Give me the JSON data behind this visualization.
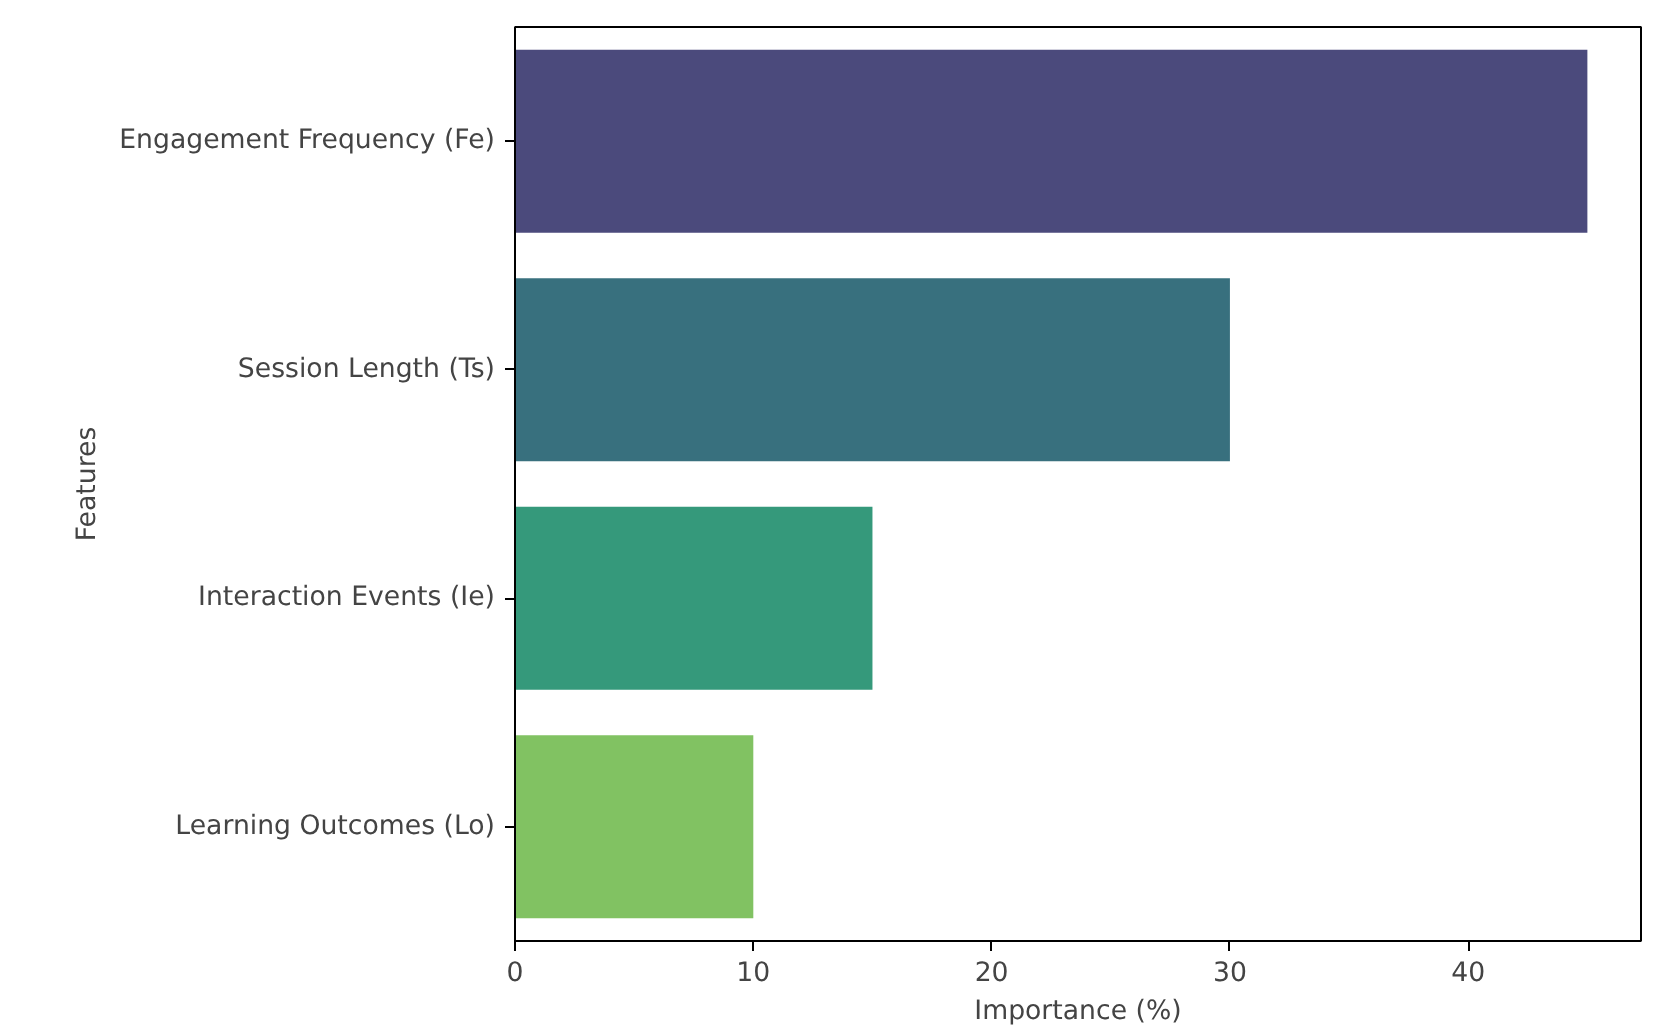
{
  "chart_data": {
    "type": "bar",
    "orientation": "horizontal",
    "xlabel": "Importance (%)",
    "ylabel": "Features",
    "categories": [
      "Engagement Frequency (Fe)",
      "Session Length (Ts)",
      "Interaction Events (Ie)",
      "Learning Outcomes (Lo)"
    ],
    "values": [
      45,
      30,
      15,
      10
    ],
    "colors": [
      "#4b4a7c",
      "#38707e",
      "#35997b",
      "#81c262"
    ],
    "xlim": [
      0,
      47.25
    ],
    "xticks": [
      0,
      10,
      20,
      30,
      40
    ],
    "grid": false
  }
}
